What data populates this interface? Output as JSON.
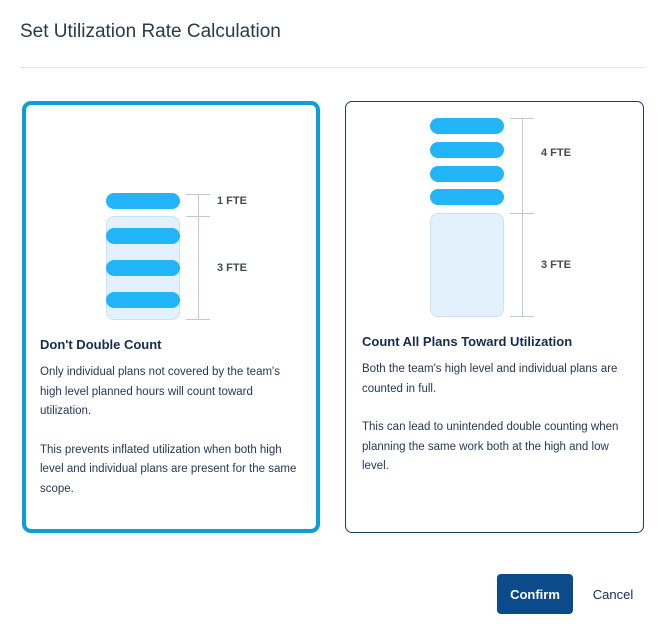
{
  "dialog": {
    "title": "Set Utilization Rate Calculation"
  },
  "options": [
    {
      "title": "Don't Double Count",
      "paragraphs": [
        "Only individual plans not covered by the team's high level planned hours will count toward utilization.",
        "This prevents inflated utilization when both high level and individual plans are present for the same scope."
      ],
      "labels": [
        "1 FTE",
        "3 FTE"
      ],
      "selected": true
    },
    {
      "title": "Count All Plans Toward Utilization",
      "paragraphs": [
        "Both the team's high level and individual plans are counted in full.",
        "This can lead to unintended double counting when planning the same work both at the high and low level."
      ],
      "labels": [
        "4 FTE",
        "3 FTE"
      ],
      "selected": false
    }
  ],
  "buttons": {
    "confirm": "Confirm",
    "cancel": "Cancel"
  },
  "colors": {
    "selected_border": "#0a9fd6",
    "pill": "#22b5f8",
    "primary": "#0b4a8b"
  }
}
